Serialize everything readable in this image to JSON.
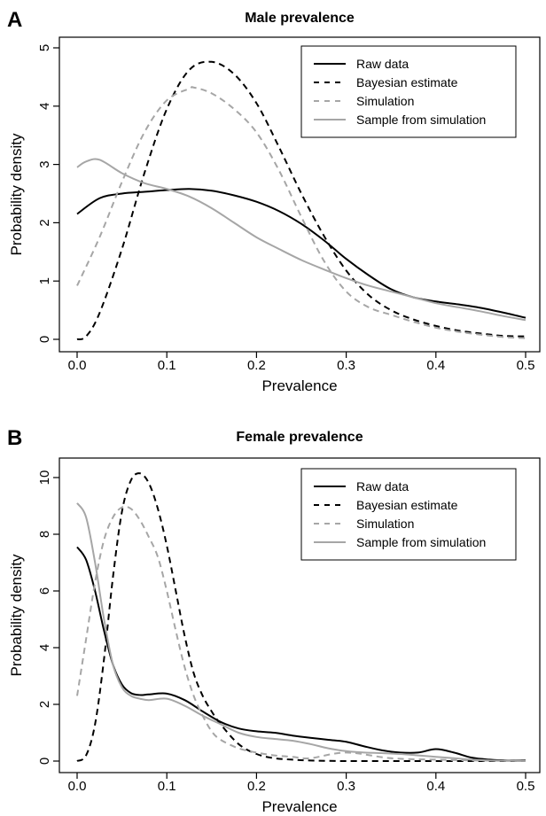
{
  "chart_data": [
    {
      "type": "line",
      "panel": "A",
      "title": "Male prevalence",
      "xlabel": "Prevalence",
      "ylabel": "Probability density",
      "xlim": [
        0,
        0.5
      ],
      "ylim": [
        0,
        5
      ],
      "xticks": [
        0,
        0.1,
        0.2,
        0.3,
        0.4,
        0.5
      ],
      "xtick_labels": [
        "0.0",
        "0.1",
        "0.2",
        "0.3",
        "0.4",
        "0.5"
      ],
      "yticks": [
        0,
        1,
        2,
        3,
        4,
        5
      ],
      "ytick_labels": [
        "0",
        "1",
        "2",
        "3",
        "4",
        "5"
      ],
      "grid": false,
      "legend_position": "top-right",
      "series": [
        {
          "name": "Raw data",
          "color": "#000000",
          "dash": "solid",
          "x": [
            0,
            0.025,
            0.05,
            0.075,
            0.1,
            0.125,
            0.15,
            0.175,
            0.2,
            0.225,
            0.25,
            0.275,
            0.3,
            0.325,
            0.35,
            0.375,
            0.4,
            0.425,
            0.45,
            0.475,
            0.5
          ],
          "y": [
            2.15,
            2.42,
            2.5,
            2.53,
            2.56,
            2.58,
            2.55,
            2.47,
            2.36,
            2.2,
            1.98,
            1.7,
            1.38,
            1.1,
            0.86,
            0.72,
            0.65,
            0.6,
            0.54,
            0.46,
            0.37
          ]
        },
        {
          "name": "Bayesian estimate",
          "color": "#000000",
          "dash": "dashed",
          "x": [
            0,
            0.01,
            0.025,
            0.05,
            0.075,
            0.1,
            0.125,
            0.15,
            0.175,
            0.2,
            0.225,
            0.25,
            0.275,
            0.3,
            0.325,
            0.35,
            0.375,
            0.4,
            0.425,
            0.45,
            0.475,
            0.5
          ],
          "y": [
            0.0,
            0.05,
            0.45,
            1.55,
            2.85,
            3.95,
            4.62,
            4.76,
            4.55,
            4.05,
            3.3,
            2.5,
            1.78,
            1.18,
            0.76,
            0.5,
            0.34,
            0.23,
            0.15,
            0.1,
            0.06,
            0.05
          ]
        },
        {
          "name": "Simulation",
          "color": "#a6a6a6",
          "dash": "dashed",
          "x": [
            0,
            0.025,
            0.05,
            0.075,
            0.1,
            0.125,
            0.13,
            0.15,
            0.175,
            0.2,
            0.225,
            0.25,
            0.275,
            0.3,
            0.325,
            0.35,
            0.375,
            0.4,
            0.425,
            0.45,
            0.475,
            0.5
          ],
          "y": [
            0.92,
            1.75,
            2.7,
            3.55,
            4.1,
            4.3,
            4.32,
            4.22,
            3.95,
            3.55,
            2.9,
            2.1,
            1.35,
            0.82,
            0.55,
            0.42,
            0.3,
            0.2,
            0.13,
            0.08,
            0.04,
            0.02
          ]
        },
        {
          "name": "Sample from simulation",
          "color": "#a6a6a6",
          "dash": "solid",
          "x": [
            0,
            0.01,
            0.025,
            0.05,
            0.075,
            0.1,
            0.125,
            0.15,
            0.175,
            0.2,
            0.225,
            0.25,
            0.275,
            0.3,
            0.325,
            0.35,
            0.375,
            0.4,
            0.425,
            0.45,
            0.475,
            0.5
          ],
          "y": [
            2.95,
            3.05,
            3.08,
            2.85,
            2.68,
            2.58,
            2.45,
            2.25,
            2.0,
            1.75,
            1.55,
            1.36,
            1.2,
            1.05,
            0.92,
            0.82,
            0.72,
            0.62,
            0.55,
            0.48,
            0.4,
            0.33
          ]
        }
      ]
    },
    {
      "type": "line",
      "panel": "B",
      "title": "Female prevalence",
      "xlabel": "Prevalence",
      "ylabel": "Probability density",
      "xlim": [
        0,
        0.5
      ],
      "ylim": [
        0,
        11
      ],
      "xticks": [
        0,
        0.1,
        0.2,
        0.3,
        0.4,
        0.5
      ],
      "xtick_labels": [
        "0.0",
        "0.1",
        "0.2",
        "0.3",
        "0.4",
        "0.5"
      ],
      "yticks": [
        0,
        2,
        4,
        6,
        8,
        10
      ],
      "ytick_labels": [
        "0",
        "2",
        "4",
        "6",
        "8",
        "10"
      ],
      "grid": false,
      "legend_position": "top-right",
      "series": [
        {
          "name": "Raw data",
          "color": "#000000",
          "dash": "solid",
          "x": [
            0,
            0.01,
            0.02,
            0.03,
            0.04,
            0.05,
            0.06,
            0.07,
            0.08,
            0.1,
            0.12,
            0.14,
            0.16,
            0.18,
            0.2,
            0.22,
            0.24,
            0.26,
            0.28,
            0.3,
            0.32,
            0.34,
            0.36,
            0.38,
            0.4,
            0.42,
            0.44,
            0.46,
            0.48,
            0.5
          ],
          "y": [
            7.55,
            7.1,
            6.0,
            4.6,
            3.4,
            2.7,
            2.4,
            2.33,
            2.35,
            2.38,
            2.15,
            1.75,
            1.38,
            1.15,
            1.05,
            1.0,
            0.9,
            0.82,
            0.75,
            0.68,
            0.52,
            0.38,
            0.3,
            0.3,
            0.42,
            0.3,
            0.12,
            0.05,
            0.02,
            0.02
          ]
        },
        {
          "name": "Bayesian estimate",
          "color": "#000000",
          "dash": "dashed",
          "x": [
            0,
            0.01,
            0.02,
            0.03,
            0.04,
            0.05,
            0.06,
            0.07,
            0.08,
            0.09,
            0.1,
            0.11,
            0.12,
            0.13,
            0.14,
            0.15,
            0.16,
            0.18,
            0.2,
            0.22,
            0.24,
            0.26,
            0.3,
            0.35,
            0.4,
            0.45,
            0.5
          ],
          "y": [
            0.0,
            0.2,
            1.3,
            3.6,
            6.5,
            8.8,
            9.9,
            10.15,
            9.8,
            8.9,
            7.6,
            6.0,
            4.4,
            3.1,
            2.3,
            1.75,
            1.3,
            0.6,
            0.25,
            0.1,
            0.05,
            0.02,
            0.0,
            0.0,
            0.0,
            0.0,
            0.0
          ]
        },
        {
          "name": "Simulation",
          "color": "#a6a6a6",
          "dash": "dashed",
          "x": [
            0,
            0.01,
            0.02,
            0.03,
            0.04,
            0.05,
            0.06,
            0.07,
            0.08,
            0.09,
            0.1,
            0.11,
            0.12,
            0.13,
            0.14,
            0.15,
            0.16,
            0.18,
            0.2,
            0.22,
            0.24,
            0.26,
            0.3,
            0.35,
            0.4,
            0.45,
            0.5
          ],
          "y": [
            2.3,
            4.3,
            6.3,
            7.8,
            8.6,
            8.95,
            8.9,
            8.5,
            7.9,
            7.2,
            6.0,
            4.6,
            3.3,
            2.3,
            1.6,
            1.05,
            0.75,
            0.45,
            0.3,
            0.2,
            0.15,
            0.1,
            0.3,
            0.1,
            0.05,
            0.02,
            0.0
          ]
        },
        {
          "name": "Sample from simulation",
          "color": "#a6a6a6",
          "dash": "solid",
          "x": [
            0,
            0.01,
            0.02,
            0.03,
            0.04,
            0.05,
            0.06,
            0.07,
            0.08,
            0.1,
            0.12,
            0.14,
            0.16,
            0.18,
            0.2,
            0.22,
            0.24,
            0.26,
            0.28,
            0.3,
            0.32,
            0.34,
            0.36,
            0.38,
            0.4,
            0.42,
            0.44,
            0.46,
            0.48,
            0.5
          ],
          "y": [
            9.1,
            8.6,
            7.0,
            5.0,
            3.4,
            2.6,
            2.3,
            2.2,
            2.15,
            2.2,
            1.95,
            1.6,
            1.3,
            1.0,
            0.85,
            0.78,
            0.72,
            0.6,
            0.45,
            0.35,
            0.3,
            0.28,
            0.25,
            0.2,
            0.15,
            0.1,
            0.05,
            0.02,
            0.01,
            0.0
          ]
        }
      ]
    }
  ]
}
